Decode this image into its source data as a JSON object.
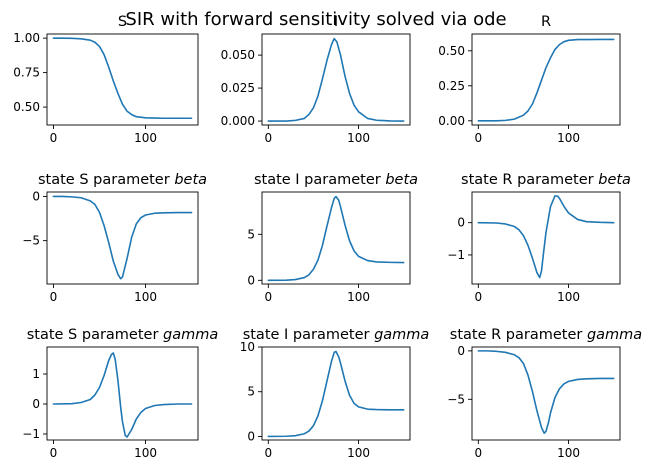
{
  "figure": {
    "suptitle": "SIR with forward sensitivity solved via ode",
    "line_color": "#1f77b4"
  },
  "chart_data": [
    {
      "type": "line",
      "title": "S",
      "xlim": [
        -7,
        157
      ],
      "ylim": [
        0.37,
        1.03
      ],
      "xticks": [
        0,
        100
      ],
      "xtick_labels": [
        "0",
        "100"
      ],
      "yticks": [
        0.5,
        0.75,
        1.0
      ],
      "ytick_labels": [
        "0.50",
        "0.75",
        "1.00"
      ],
      "x": [
        0,
        10,
        20,
        30,
        40,
        45,
        50,
        55,
        60,
        65,
        70,
        75,
        80,
        85,
        90,
        100,
        110,
        120,
        135,
        150
      ],
      "y": [
        1.0,
        1.0,
        0.999,
        0.995,
        0.985,
        0.97,
        0.94,
        0.88,
        0.79,
        0.69,
        0.6,
        0.52,
        0.47,
        0.445,
        0.43,
        0.422,
        0.42,
        0.419,
        0.419,
        0.419
      ]
    },
    {
      "type": "line",
      "title": "I",
      "xlim": [
        -7,
        157
      ],
      "ylim": [
        -0.003,
        0.066
      ],
      "xticks": [
        0,
        100
      ],
      "xtick_labels": [
        "0",
        "100"
      ],
      "yticks": [
        0.0,
        0.025,
        0.05
      ],
      "ytick_labels": [
        "0.000",
        "0.025",
        "0.050"
      ],
      "x": [
        0,
        20,
        30,
        40,
        45,
        50,
        55,
        60,
        65,
        70,
        73,
        76,
        80,
        85,
        90,
        95,
        100,
        110,
        120,
        135,
        150
      ],
      "y": [
        0.0,
        0.0,
        0.0005,
        0.002,
        0.005,
        0.01,
        0.019,
        0.032,
        0.046,
        0.058,
        0.0625,
        0.06,
        0.05,
        0.034,
        0.021,
        0.012,
        0.007,
        0.002,
        0.0006,
        0.0001,
        0.0
      ]
    },
    {
      "type": "line",
      "title": "R",
      "xlim": [
        -7,
        157
      ],
      "ylim": [
        -0.03,
        0.62
      ],
      "xticks": [
        0,
        100
      ],
      "xtick_labels": [
        "0",
        "100"
      ],
      "yticks": [
        0.0,
        0.25,
        0.5
      ],
      "ytick_labels": [
        "0.00",
        "0.25",
        "0.50"
      ],
      "x": [
        0,
        20,
        30,
        40,
        50,
        55,
        60,
        65,
        70,
        75,
        80,
        85,
        90,
        95,
        100,
        110,
        120,
        135,
        150
      ],
      "y": [
        0.0,
        0.0,
        0.003,
        0.012,
        0.04,
        0.07,
        0.12,
        0.2,
        0.29,
        0.38,
        0.45,
        0.51,
        0.545,
        0.565,
        0.575,
        0.58,
        0.58,
        0.581,
        0.581
      ]
    },
    {
      "type": "line",
      "title_prefix": "state S parameter ",
      "title_param": "beta",
      "xlim": [
        -7,
        157
      ],
      "ylim": [
        -9.9,
        0.5
      ],
      "xticks": [
        0,
        100
      ],
      "xtick_labels": [
        "0",
        "100"
      ],
      "yticks": [
        -5,
        0
      ],
      "ytick_labels": [
        "−5",
        "0"
      ],
      "x": [
        0,
        10,
        20,
        30,
        40,
        45,
        50,
        55,
        60,
        65,
        70,
        73,
        75,
        80,
        85,
        90,
        95,
        100,
        110,
        120,
        135,
        150
      ],
      "y": [
        0.0,
        0.0,
        -0.05,
        -0.15,
        -0.5,
        -0.9,
        -1.8,
        -3.3,
        -5.2,
        -7.3,
        -8.8,
        -9.3,
        -9.1,
        -7.0,
        -4.6,
        -3.1,
        -2.4,
        -2.1,
        -1.9,
        -1.85,
        -1.83,
        -1.82
      ]
    },
    {
      "type": "line",
      "title_prefix": "state I parameter ",
      "title_param": "beta",
      "xlim": [
        -7,
        157
      ],
      "ylim": [
        -0.4,
        9.6
      ],
      "xticks": [
        0,
        100
      ],
      "xtick_labels": [
        "0",
        "100"
      ],
      "yticks": [
        0,
        5
      ],
      "ytick_labels": [
        "0",
        "5"
      ],
      "x": [
        0,
        20,
        30,
        40,
        45,
        50,
        55,
        60,
        65,
        70,
        73,
        75,
        78,
        80,
        85,
        90,
        95,
        100,
        110,
        120,
        135,
        150
      ],
      "y": [
        0.0,
        0.02,
        0.08,
        0.3,
        0.6,
        1.2,
        2.2,
        3.8,
        5.9,
        7.9,
        8.9,
        9.1,
        8.7,
        8.0,
        6.0,
        4.3,
        3.2,
        2.6,
        2.15,
        2.0,
        1.95,
        1.93
      ]
    },
    {
      "type": "line",
      "title_prefix": "state R parameter ",
      "title_param": "beta",
      "xlim": [
        -7,
        157
      ],
      "ylim": [
        -1.9,
        0.95
      ],
      "xticks": [
        0,
        100
      ],
      "xtick_labels": [
        "0",
        "100"
      ],
      "yticks": [
        -1,
        0
      ],
      "ytick_labels": [
        "−1",
        "0"
      ],
      "x": [
        0,
        20,
        30,
        40,
        45,
        50,
        55,
        60,
        65,
        68,
        70,
        72,
        75,
        80,
        85,
        88,
        90,
        95,
        100,
        110,
        120,
        135,
        150
      ],
      "y": [
        0.0,
        -0.01,
        -0.04,
        -0.12,
        -0.22,
        -0.4,
        -0.7,
        -1.1,
        -1.55,
        -1.7,
        -1.5,
        -1.0,
        -0.3,
        0.5,
        0.83,
        0.82,
        0.75,
        0.5,
        0.3,
        0.1,
        0.03,
        0.01,
        0.0
      ]
    },
    {
      "type": "line",
      "title_prefix": "state S parameter ",
      "title_param": "gamma",
      "xlim": [
        -7,
        157
      ],
      "ylim": [
        -1.2,
        1.9
      ],
      "xticks": [
        0,
        100
      ],
      "xtick_labels": [
        "0",
        "100"
      ],
      "yticks": [
        -1,
        0,
        1
      ],
      "ytick_labels": [
        "−1",
        "0",
        "1"
      ],
      "x": [
        0,
        20,
        30,
        40,
        45,
        50,
        55,
        60,
        63,
        65,
        67,
        70,
        73,
        75,
        78,
        80,
        85,
        90,
        95,
        100,
        110,
        120,
        135,
        150
      ],
      "y": [
        0.0,
        0.01,
        0.05,
        0.15,
        0.3,
        0.55,
        0.95,
        1.45,
        1.65,
        1.7,
        1.5,
        0.8,
        -0.1,
        -0.6,
        -1.05,
        -1.1,
        -0.85,
        -0.5,
        -0.28,
        -0.15,
        -0.05,
        -0.02,
        0.0,
        0.0
      ]
    },
    {
      "type": "line",
      "title_prefix": "state I parameter ",
      "title_param": "gamma",
      "xlim": [
        -7,
        157
      ],
      "ylim": [
        -0.4,
        10.0
      ],
      "xticks": [
        0,
        100
      ],
      "xtick_labels": [
        "0",
        "100"
      ],
      "yticks": [
        0,
        5,
        10
      ],
      "ytick_labels": [
        "0",
        "5",
        "10"
      ],
      "x": [
        0,
        20,
        30,
        40,
        45,
        50,
        55,
        60,
        65,
        70,
        73,
        75,
        78,
        80,
        85,
        90,
        95,
        100,
        110,
        120,
        135,
        150
      ],
      "y": [
        0.0,
        0.02,
        0.08,
        0.3,
        0.6,
        1.2,
        2.3,
        4.0,
        6.2,
        8.4,
        9.4,
        9.5,
        8.9,
        8.2,
        6.2,
        4.6,
        3.7,
        3.3,
        3.05,
        3.0,
        2.98,
        2.97
      ]
    },
    {
      "type": "line",
      "title_prefix": "state R parameter ",
      "title_param": "gamma",
      "xlim": [
        -7,
        157
      ],
      "ylim": [
        -9.2,
        0.4
      ],
      "xticks": [
        0,
        100
      ],
      "xtick_labels": [
        "0",
        "100"
      ],
      "yticks": [
        -5,
        0
      ],
      "ytick_labels": [
        "−5",
        "0"
      ],
      "x": [
        0,
        10,
        20,
        30,
        40,
        45,
        50,
        55,
        60,
        65,
        70,
        73,
        75,
        78,
        80,
        85,
        90,
        95,
        100,
        110,
        120,
        135,
        150
      ],
      "y": [
        0.0,
        0.0,
        -0.05,
        -0.15,
        -0.4,
        -0.7,
        -1.3,
        -2.5,
        -4.2,
        -6.2,
        -7.9,
        -8.5,
        -8.3,
        -7.3,
        -6.4,
        -4.8,
        -3.9,
        -3.4,
        -3.15,
        -2.95,
        -2.88,
        -2.85,
        -2.84
      ]
    }
  ]
}
